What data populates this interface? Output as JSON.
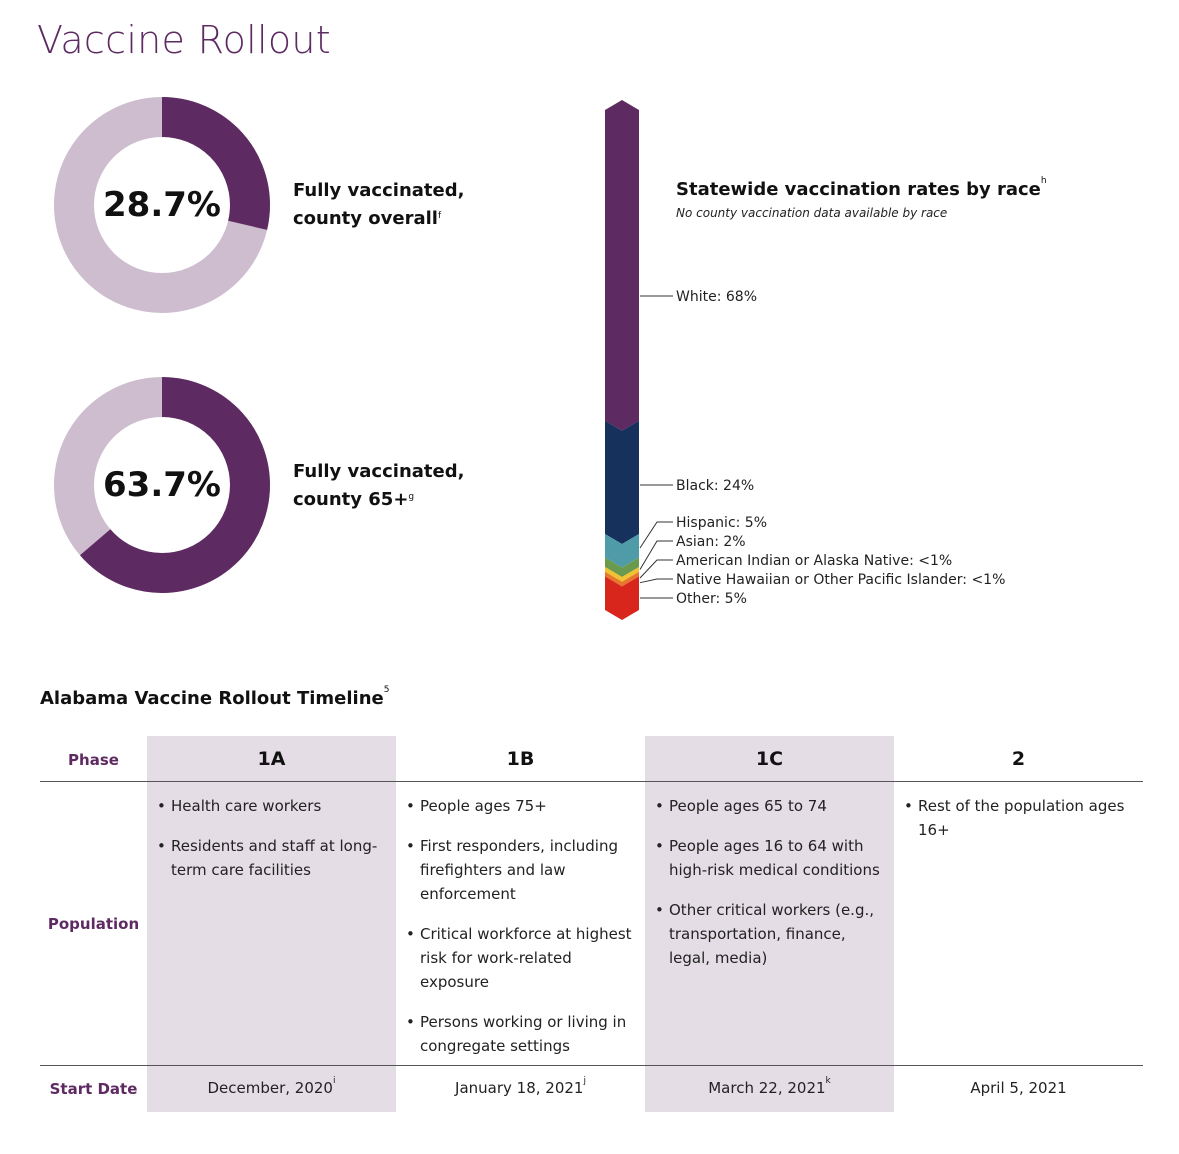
{
  "page_title": "Vaccine Rollout",
  "donuts": [
    {
      "value": "28.7%",
      "fraction": 0.287,
      "label_line1": "Fully vaccinated,",
      "label_line2": "county overall",
      "footnote": "f"
    },
    {
      "value": "63.7%",
      "fraction": 0.637,
      "label_line1": "Fully vaccinated,",
      "label_line2": "county 65+",
      "footnote": "g"
    }
  ],
  "colors": {
    "accent": "#5e2a62",
    "donut_track": "#cdbdcf",
    "shade": "#e5dde6"
  },
  "chart_data": {
    "type": "stacked-bar",
    "title": "Statewide vaccination rates by race",
    "title_footnote": "h",
    "subtitle": "No county vaccination data available by race",
    "categories": [
      "White",
      "Black",
      "Hispanic",
      "Asian",
      "American Indian or Alaska Native",
      "Native Hawaiian or Other Pacific Islander",
      "Other"
    ],
    "values": [
      68,
      24,
      5,
      2,
      1,
      1,
      5
    ],
    "labels": [
      "White: 68%",
      "Black: 24%",
      "Hispanic: 5%",
      "Asian: 2%",
      "American Indian or Alaska Native: <1%",
      "Native Hawaiian or Other Pacific Islander: <1%",
      "Other: 5%"
    ],
    "colors": [
      "#5e2a62",
      "#16315c",
      "#4f9ca8",
      "#6a9a4e",
      "#f1c232",
      "#e8772e",
      "#d9261c"
    ]
  },
  "timeline": {
    "title": "Alabama Vaccine Rollout Timeline",
    "title_footnote": "5",
    "row_labels": {
      "phase": "Phase",
      "population": "Population",
      "start": "Start Date"
    },
    "columns": [
      {
        "phase": "1A",
        "shaded": true,
        "population": [
          "Health care workers",
          "Residents and staff at long-term care facilities"
        ],
        "start": "December, 2020",
        "footnote": "i"
      },
      {
        "phase": "1B",
        "shaded": false,
        "population": [
          "People ages 75+",
          "First responders, including firefighters and law enforcement",
          "Critical workforce at highest risk for work-related exposure",
          "Persons working or living in congregate settings"
        ],
        "start": "January 18, 2021",
        "footnote": "j"
      },
      {
        "phase": "1C",
        "shaded": true,
        "population": [
          "People ages 65 to 74",
          "People ages 16 to 64 with high-risk medical conditions",
          "Other critical workers (e.g., transportation, finance, legal, media)"
        ],
        "start": "March 22, 2021",
        "footnote": "k"
      },
      {
        "phase": "2",
        "shaded": false,
        "population": [
          "Rest of the population ages 16+"
        ],
        "start": "April 5, 2021",
        "footnote": ""
      }
    ]
  }
}
